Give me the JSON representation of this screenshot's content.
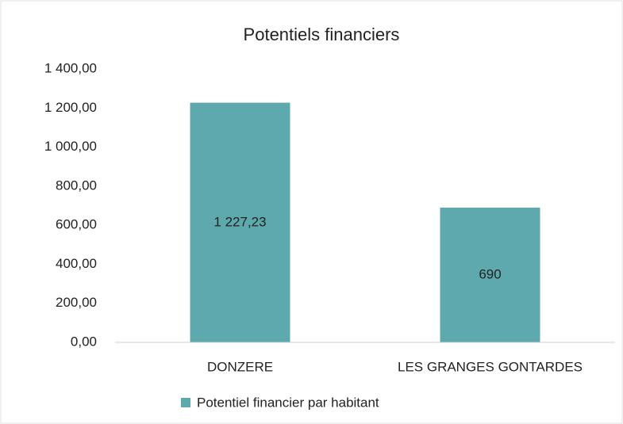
{
  "chart_data": {
    "type": "bar",
    "title": "Potentiels financiers",
    "categories": [
      "DONZERE",
      "LES GRANGES GONTARDES"
    ],
    "series": [
      {
        "name": "Potentiel financier par habitant",
        "color": "#5ea9ae",
        "values": [
          1227.23,
          690
        ],
        "value_labels": [
          "1 227,23",
          "690"
        ]
      }
    ],
    "ylim": [
      0,
      1400
    ],
    "yticks": [
      {
        "value": 0,
        "label": "0,00"
      },
      {
        "value": 200,
        "label": "200,00"
      },
      {
        "value": 400,
        "label": "400,00"
      },
      {
        "value": 600,
        "label": "600,00"
      },
      {
        "value": 800,
        "label": "800,00"
      },
      {
        "value": 1000,
        "label": "1 000,00"
      },
      {
        "value": 1200,
        "label": "1 200,00"
      },
      {
        "value": 1400,
        "label": "1 400,00"
      }
    ],
    "grid": false,
    "legend": "bottom"
  }
}
